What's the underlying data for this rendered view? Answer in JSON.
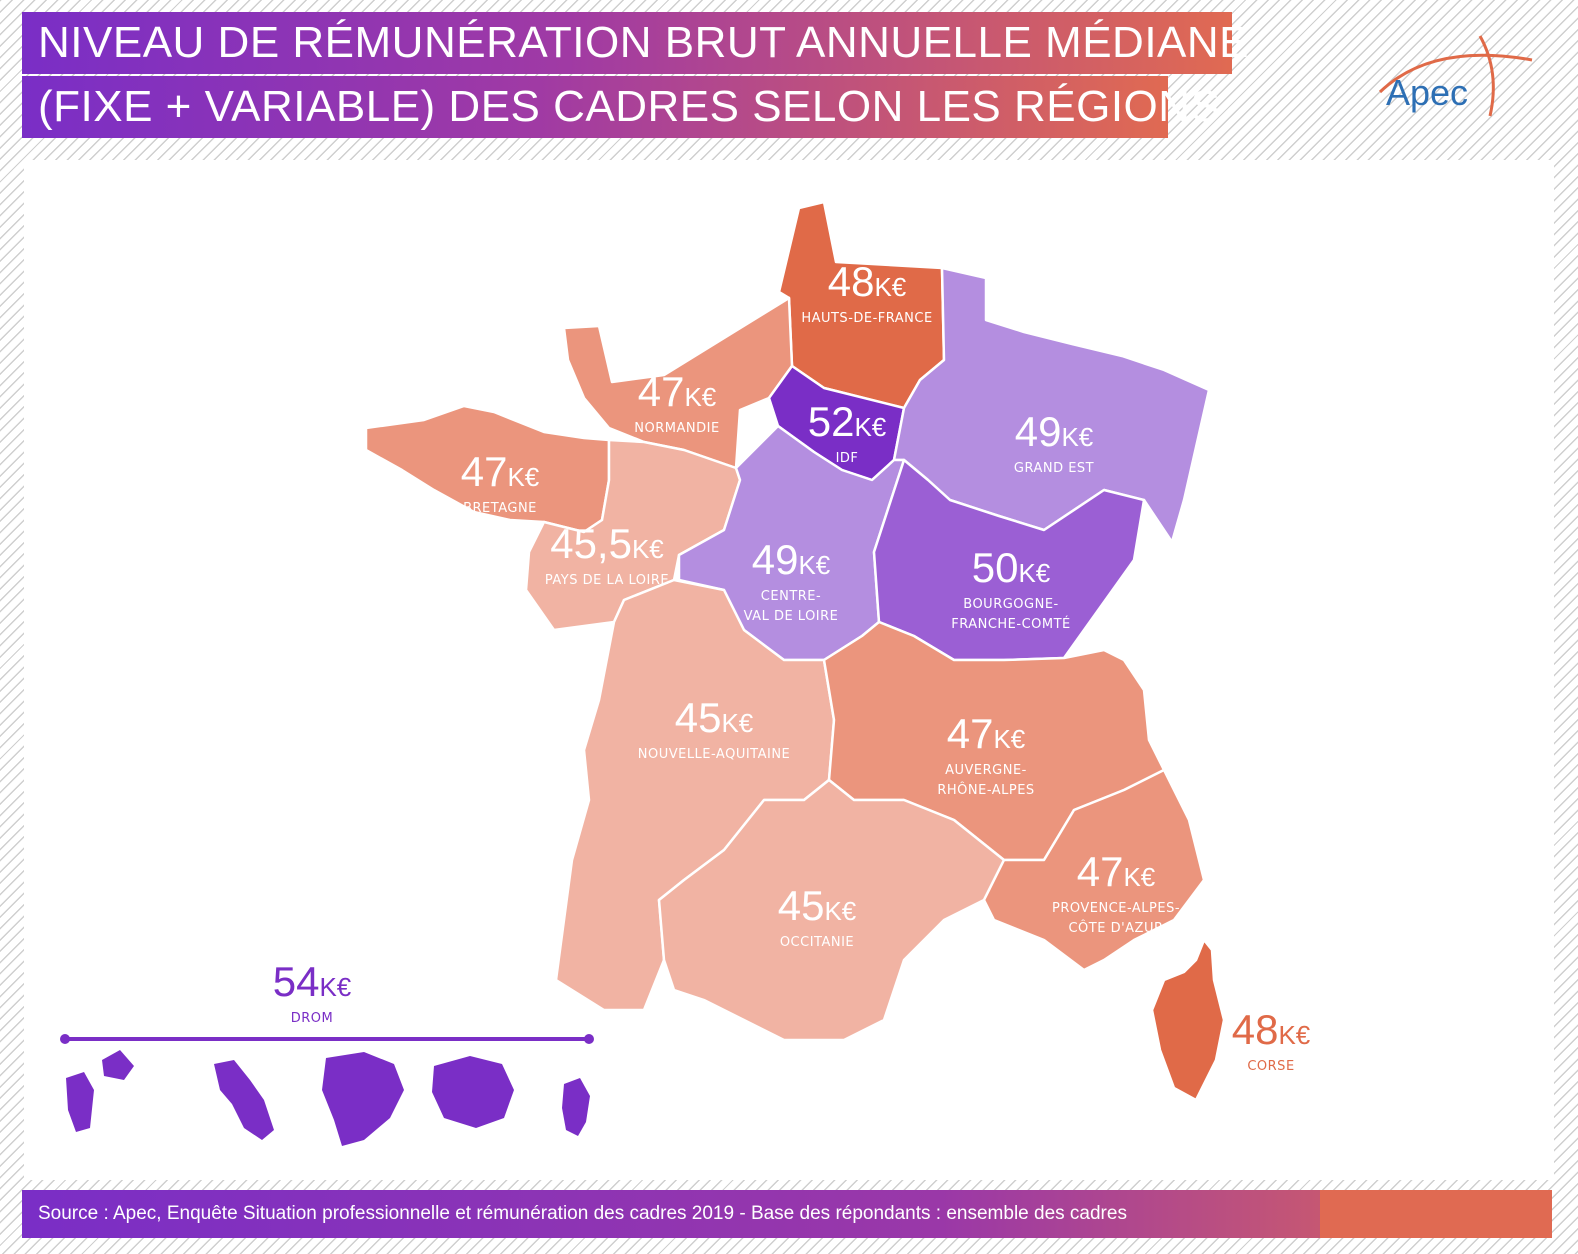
{
  "header": {
    "title_line_1": "NIVEAU DE RÉMUNÉRATION BRUT ANNUELLE MÉDIANE",
    "title_line_2": "(FIXE + VARIABLE) DES CADRES SELON LES RÉGIONS"
  },
  "logo": {
    "text": "Apec"
  },
  "unit": "K€",
  "regions": [
    {
      "id": "hauts-de-france",
      "name": "HAUTS-DE-FRANCE",
      "value": "48",
      "color": "#e06a48"
    },
    {
      "id": "normandie",
      "name": "NORMANDIE",
      "value": "47",
      "color": "#eb957d"
    },
    {
      "id": "idf",
      "name": "IDF",
      "value": "52",
      "color": "#7a2ec6"
    },
    {
      "id": "grand-est",
      "name": "GRAND EST",
      "value": "49",
      "color": "#b48ee0"
    },
    {
      "id": "bretagne",
      "name": "BRETAGNE",
      "value": "47",
      "color": "#eb957d"
    },
    {
      "id": "pays-de-la-loire",
      "name": "PAYS DE LA LOIRE",
      "value": "45,5",
      "color": "#f1b3a3"
    },
    {
      "id": "centre-val-de-loire",
      "name_lines": [
        "CENTRE-",
        "VAL DE LOIRE"
      ],
      "value": "49",
      "color": "#b48ee0"
    },
    {
      "id": "bourgogne-franche-comte",
      "name_lines": [
        "BOURGOGNE-",
        "FRANCHE-COMTÉ"
      ],
      "value": "50",
      "color": "#9b5fd4"
    },
    {
      "id": "nouvelle-aquitaine",
      "name": "NOUVELLE-AQUITAINE",
      "value": "45",
      "color": "#f1b3a3"
    },
    {
      "id": "auvergne-rhone-alpes",
      "name_lines": [
        "AUVERGNE-",
        "RHÔNE-ALPES"
      ],
      "value": "47",
      "color": "#eb957d"
    },
    {
      "id": "occitanie",
      "name": "OCCITANIE",
      "value": "45",
      "color": "#f1b3a3"
    },
    {
      "id": "provence-alpes-cote-dazur",
      "name_lines": [
        "PROVENCE-ALPES-",
        "CÔTE D'AZUR"
      ],
      "value": "47",
      "color": "#eb957d"
    },
    {
      "id": "corse",
      "name": "CORSE",
      "value": "48",
      "color": "#e06a48"
    }
  ],
  "drom": {
    "name": "DROM",
    "value": "54",
    "color": "#7a2ec6"
  },
  "footer": {
    "source": "Source : Apec, Enquête Situation professionnelle et rémunération des cadres 2019 - Base des répondants : ensemble des cadres"
  }
}
